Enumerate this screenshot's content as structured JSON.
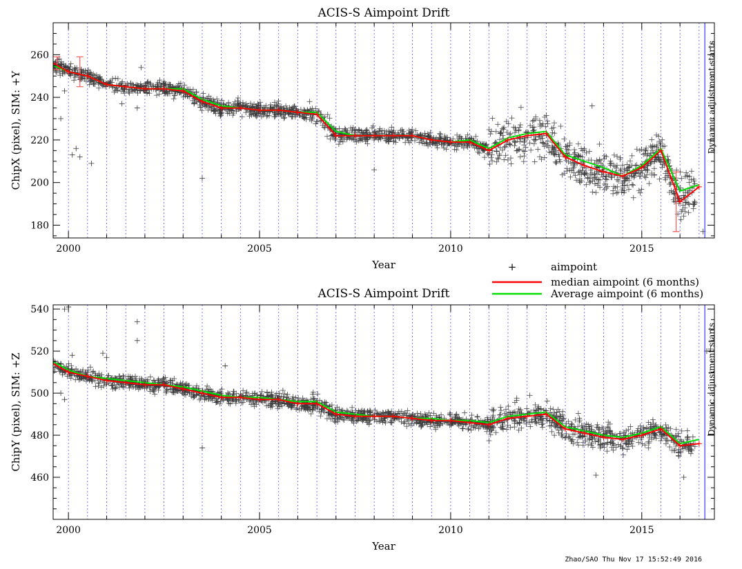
{
  "footer": "Zhao/SAO Thu Nov 17 15:52:49 2016",
  "legend": {
    "items": [
      {
        "label": "aimpoint",
        "symbol": "+",
        "color": "#000000"
      },
      {
        "label": "median aimpoint (6 months)",
        "color": "#ff0000"
      },
      {
        "label": "Average aimpoint (6 months)",
        "color": "#00dd00"
      }
    ]
  },
  "chart_data": [
    {
      "type": "scatter",
      "title": "ACIS-S Aimpoint Drift",
      "xlabel": "Year",
      "ylabel": "ChipX (pixel), SIM: +Y",
      "xlim": [
        1999.6,
        2016.9
      ],
      "ylim": [
        174,
        275
      ],
      "xticks": [
        2000,
        2005,
        2010,
        2015
      ],
      "yticks": [
        180,
        200,
        220,
        240,
        260
      ],
      "annotation": "Dynamic adjustment starts",
      "annotation_x": 2016.65,
      "median_series": {
        "name": "median aimpoint (6 months)",
        "x": [
          1999.6,
          2000.0,
          2000.5,
          2001.0,
          2001.5,
          2002.0,
          2002.5,
          2003.0,
          2003.5,
          2004.0,
          2004.5,
          2005.0,
          2005.5,
          2006.0,
          2006.5,
          2007.0,
          2007.5,
          2008.0,
          2008.5,
          2009.0,
          2009.5,
          2010.0,
          2010.5,
          2011.0,
          2011.5,
          2012.0,
          2012.5,
          2013.0,
          2013.5,
          2014.0,
          2014.5,
          2015.0,
          2015.5,
          2016.0,
          2016.5
        ],
        "values": [
          256,
          252,
          250,
          246,
          245,
          244,
          244,
          243,
          238,
          235,
          235,
          234,
          234,
          233,
          232,
          222,
          222,
          222,
          222,
          222,
          220,
          219,
          219,
          215,
          220,
          222,
          223,
          212,
          208,
          205,
          203,
          207,
          215,
          191,
          198
        ]
      },
      "average_series": {
        "name": "Average aimpoint (6 months)",
        "x": [
          1999.6,
          2000.0,
          2000.5,
          2001.0,
          2001.5,
          2002.0,
          2002.5,
          2003.0,
          2003.5,
          2004.0,
          2004.5,
          2005.0,
          2005.5,
          2006.0,
          2006.5,
          2007.0,
          2007.5,
          2008.0,
          2008.5,
          2009.0,
          2009.5,
          2010.0,
          2010.5,
          2011.0,
          2011.5,
          2012.0,
          2012.5,
          2013.0,
          2013.5,
          2014.0,
          2014.5,
          2015.0,
          2015.5,
          2016.0,
          2016.5
        ],
        "values": [
          255,
          252,
          250,
          246,
          245,
          244,
          244,
          244,
          239,
          236,
          235,
          234,
          234,
          233,
          233,
          224,
          222,
          222,
          222,
          222,
          220,
          219,
          220,
          216,
          221,
          223,
          224,
          213,
          210,
          207,
          203,
          208,
          216,
          196,
          199
        ]
      },
      "error_bars": [
        {
          "x": 1999.7,
          "y": 256,
          "err": 3
        },
        {
          "x": 2000.3,
          "y": 252,
          "err": 7
        },
        {
          "x": 2015.9,
          "y": 191,
          "err": 14
        }
      ],
      "outliers": [
        {
          "x": 1999.8,
          "y": 230
        },
        {
          "x": 1999.9,
          "y": 243
        },
        {
          "x": 2000.1,
          "y": 213
        },
        {
          "x": 2000.2,
          "y": 216
        },
        {
          "x": 2000.3,
          "y": 212
        },
        {
          "x": 2000.6,
          "y": 209
        },
        {
          "x": 2001.4,
          "y": 237
        },
        {
          "x": 2001.8,
          "y": 235
        },
        {
          "x": 2001.9,
          "y": 254
        },
        {
          "x": 2003.5,
          "y": 202
        },
        {
          "x": 2008.0,
          "y": 206
        },
        {
          "x": 2013.7,
          "y": 236
        },
        {
          "x": 2016.6,
          "y": 177
        }
      ]
    },
    {
      "type": "scatter",
      "title": "ACIS-S Aimpoint Drift",
      "xlabel": "Year",
      "ylabel": "ChipY (pixel), SIM: +Z",
      "xlim": [
        1999.6,
        2016.9
      ],
      "ylim": [
        440,
        542
      ],
      "xticks": [
        2000,
        2005,
        2010,
        2015
      ],
      "yticks": [
        460,
        480,
        500,
        520,
        540
      ],
      "annotation": "Dynamic adjustment starts",
      "annotation_x": 2016.65,
      "median_series": {
        "name": "median aimpoint (6 months)",
        "x": [
          1999.6,
          2000.0,
          2000.5,
          2001.0,
          2001.5,
          2002.0,
          2002.5,
          2003.0,
          2003.5,
          2004.0,
          2004.5,
          2005.0,
          2005.5,
          2006.0,
          2006.5,
          2007.0,
          2007.5,
          2008.0,
          2008.5,
          2009.0,
          2009.5,
          2010.0,
          2010.5,
          2011.0,
          2011.5,
          2012.0,
          2012.5,
          2013.0,
          2013.5,
          2014.0,
          2014.5,
          2015.0,
          2015.5,
          2016.0,
          2016.5
        ],
        "values": [
          514,
          510,
          508,
          506,
          505,
          504,
          504,
          502,
          500,
          498,
          498,
          497,
          497,
          495,
          495,
          490,
          489,
          489,
          489,
          488,
          487,
          487,
          486,
          485,
          488,
          489,
          490,
          483,
          481,
          479,
          478,
          480,
          483,
          475,
          476
        ]
      },
      "average_series": {
        "name": "Average aimpoint (6 months)",
        "x": [
          1999.6,
          2000.0,
          2000.5,
          2001.0,
          2001.5,
          2002.0,
          2002.5,
          2003.0,
          2003.5,
          2004.0,
          2004.5,
          2005.0,
          2005.5,
          2006.0,
          2006.5,
          2007.0,
          2007.5,
          2008.0,
          2008.5,
          2009.0,
          2009.5,
          2010.0,
          2010.5,
          2011.0,
          2011.5,
          2012.0,
          2012.5,
          2013.0,
          2013.5,
          2014.0,
          2014.5,
          2015.0,
          2015.5,
          2016.0,
          2016.5
        ],
        "values": [
          515,
          511,
          508,
          507,
          506,
          505,
          504,
          503,
          501,
          499,
          498,
          498,
          497,
          496,
          496,
          491,
          490,
          489,
          489,
          488,
          488,
          487,
          487,
          486,
          489,
          490,
          491,
          484,
          482,
          480,
          479,
          481,
          484,
          476,
          478
        ]
      },
      "error_bars": [],
      "outliers": [
        {
          "x": 1999.9,
          "y": 540
        },
        {
          "x": 2000.0,
          "y": 541
        },
        {
          "x": 1999.8,
          "y": 500
        },
        {
          "x": 1999.9,
          "y": 497
        },
        {
          "x": 2000.1,
          "y": 518
        },
        {
          "x": 2000.9,
          "y": 519
        },
        {
          "x": 2001.0,
          "y": 517
        },
        {
          "x": 2001.8,
          "y": 534
        },
        {
          "x": 2001.8,
          "y": 525
        },
        {
          "x": 2003.5,
          "y": 474
        },
        {
          "x": 2004.1,
          "y": 513
        },
        {
          "x": 2013.8,
          "y": 461
        },
        {
          "x": 2016.1,
          "y": 460
        },
        {
          "x": 2016.7,
          "y": 520
        },
        {
          "x": 2016.8,
          "y": 521
        }
      ]
    }
  ]
}
